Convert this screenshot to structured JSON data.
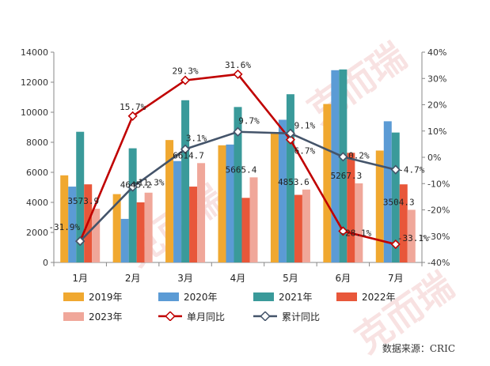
{
  "chart_data": {
    "type": "bar",
    "categories": [
      "1月",
      "2月",
      "3月",
      "4月",
      "5月",
      "6月",
      "7月"
    ],
    "series": [
      {
        "name": "2019年",
        "color": "#F0A830",
        "values": [
          5800,
          4550,
          8150,
          7800,
          8600,
          10550,
          7450
        ]
      },
      {
        "name": "2020年",
        "color": "#5B9BD5",
        "values": [
          5050,
          2900,
          6750,
          7850,
          9500,
          12800,
          9400
        ]
      },
      {
        "name": "2021年",
        "color": "#3A9A9A",
        "values": [
          8700,
          7600,
          10800,
          10350,
          11200,
          12850,
          8650
        ]
      },
      {
        "name": "2022年",
        "color": "#E8573A",
        "values": [
          5200,
          4000,
          5050,
          4300,
          4500,
          7300,
          5200
        ]
      },
      {
        "name": "2023年",
        "color": "#F0A79A",
        "values": [
          3573.9,
          4645.2,
          6614.7,
          5665.4,
          4853.6,
          5267.3,
          3504.3
        ]
      }
    ],
    "lines": [
      {
        "name": "单月同比",
        "color": "#C00000",
        "values": [
          -31.9,
          15.7,
          29.3,
          31.6,
          6.7,
          -28.1,
          -33.1
        ]
      },
      {
        "name": "累计同比",
        "color": "#44546A",
        "values": [
          -31.9,
          -11.3,
          3.1,
          9.7,
          9.1,
          0.2,
          -4.7
        ]
      }
    ],
    "bar_labels": [
      "3573.9",
      "4645.2",
      "6614.7",
      "5665.4",
      "4853.6",
      "5267.3",
      "3504.3"
    ],
    "line1_labels": [
      "-31.9%",
      "15.7%",
      "29.3%",
      "31.6%",
      "6.7%",
      "-28.1%",
      "-33.1%"
    ],
    "line2_labels": [
      "",
      "-11.3%",
      "3.1%",
      "9.7%",
      "9.1%",
      "0.2%",
      "-4.7%"
    ],
    "y_left": {
      "min": 0,
      "max": 14000,
      "ticks": [
        "0",
        "2000",
        "4000",
        "6000",
        "8000",
        "10000",
        "12000",
        "14000"
      ]
    },
    "y_right": {
      "min": -40,
      "max": 40,
      "ticks": [
        "-40%",
        "-30%",
        "-20%",
        "-10%",
        "0%",
        "10%",
        "20%",
        "30%",
        "40%"
      ]
    },
    "legend": {
      "placement": "bottom"
    }
  },
  "source": "数据来源：CRIC",
  "watermark": "克而瑞"
}
